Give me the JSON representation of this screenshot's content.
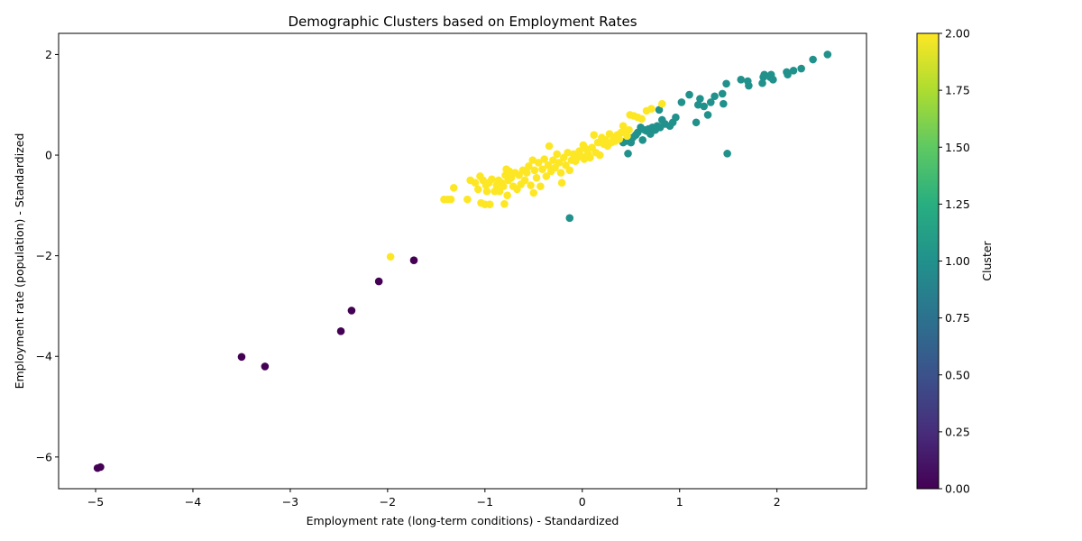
{
  "chart_data": {
    "type": "scatter",
    "title": "Demographic Clusters based on Employment Rates",
    "xlabel": "Employment rate (long-term conditions) - Standardized",
    "ylabel": "Employment rate (population) - Standardized",
    "xlim": [
      -5.38,
      2.92
    ],
    "ylim": [
      -6.63,
      2.42
    ],
    "xticks": [
      -5,
      -4,
      -3,
      -2,
      -1,
      0,
      1,
      2
    ],
    "xtick_labels": [
      "−5",
      "−4",
      "−3",
      "−2",
      "−1",
      "0",
      "1",
      "2"
    ],
    "yticks": [
      -6,
      -4,
      -2,
      0,
      2
    ],
    "ytick_labels": [
      "−6",
      "−4",
      "−2",
      "0",
      "2"
    ],
    "grid": false,
    "colormap": "viridis",
    "colorbar": {
      "label": "Cluster",
      "range": [
        0,
        2
      ],
      "ticks": [
        0,
        0.25,
        0.5,
        0.75,
        1,
        1.25,
        1.5,
        1.75,
        2
      ],
      "tick_labels": [
        "0.00",
        "0.25",
        "0.50",
        "0.75",
        "1.00",
        "1.25",
        "1.50",
        "1.75",
        "2.00"
      ]
    },
    "cluster_colors": {
      "0": "#440154",
      "1": "#21918c",
      "2": "#fde725"
    },
    "series": [
      {
        "cluster": 0,
        "points": [
          [
            -4.98,
            -6.22
          ],
          [
            -4.95,
            -6.2
          ],
          [
            -3.5,
            -4.01
          ],
          [
            -3.26,
            -4.2
          ],
          [
            -2.48,
            -3.5
          ],
          [
            -2.37,
            -3.09
          ],
          [
            -2.09,
            -2.51
          ],
          [
            -1.73,
            -2.09
          ]
        ]
      },
      {
        "cluster": 1,
        "points": [
          [
            -0.13,
            -1.25
          ],
          [
            0.42,
            0.25
          ],
          [
            0.45,
            0.28
          ],
          [
            0.47,
            0.03
          ],
          [
            0.49,
            0.3
          ],
          [
            0.5,
            0.25
          ],
          [
            0.52,
            0.35
          ],
          [
            0.55,
            0.4
          ],
          [
            0.57,
            0.45
          ],
          [
            0.6,
            0.55
          ],
          [
            0.62,
            0.3
          ],
          [
            0.64,
            0.5
          ],
          [
            0.66,
            0.48
          ],
          [
            0.68,
            0.52
          ],
          [
            0.7,
            0.42
          ],
          [
            0.72,
            0.55
          ],
          [
            0.75,
            0.5
          ],
          [
            0.77,
            0.58
          ],
          [
            0.79,
            0.9
          ],
          [
            0.8,
            0.55
          ],
          [
            0.82,
            0.7
          ],
          [
            0.85,
            0.62
          ],
          [
            0.9,
            0.58
          ],
          [
            0.93,
            0.65
          ],
          [
            0.96,
            0.75
          ],
          [
            1.02,
            1.05
          ],
          [
            1.1,
            1.2
          ],
          [
            1.17,
            0.65
          ],
          [
            1.19,
            1.0
          ],
          [
            1.21,
            1.12
          ],
          [
            1.25,
            0.97
          ],
          [
            1.29,
            0.8
          ],
          [
            1.32,
            1.05
          ],
          [
            1.36,
            1.17
          ],
          [
            1.44,
            1.22
          ],
          [
            1.45,
            1.02
          ],
          [
            1.48,
            1.42
          ],
          [
            1.49,
            0.03
          ],
          [
            1.63,
            1.5
          ],
          [
            1.7,
            1.47
          ],
          [
            1.71,
            1.38
          ],
          [
            1.85,
            1.43
          ],
          [
            1.86,
            1.55
          ],
          [
            1.87,
            1.6
          ],
          [
            1.93,
            1.55
          ],
          [
            1.94,
            1.6
          ],
          [
            1.96,
            1.5
          ],
          [
            2.1,
            1.65
          ],
          [
            2.11,
            1.6
          ],
          [
            2.17,
            1.68
          ],
          [
            2.25,
            1.72
          ],
          [
            2.37,
            1.9
          ],
          [
            2.52,
            2.0
          ]
        ]
      },
      {
        "cluster": 2,
        "points": [
          [
            -1.97,
            -2.02
          ],
          [
            -1.42,
            -0.88
          ],
          [
            -1.38,
            -0.88
          ],
          [
            -1.35,
            -0.88
          ],
          [
            -1.32,
            -0.65
          ],
          [
            -1.18,
            -0.88
          ],
          [
            -1.15,
            -0.5
          ],
          [
            -1.1,
            -0.55
          ],
          [
            -1.07,
            -0.68
          ],
          [
            -1.05,
            -0.42
          ],
          [
            -1.04,
            -0.95
          ],
          [
            -1.02,
            -0.5
          ],
          [
            -1.0,
            -0.98
          ],
          [
            -0.99,
            -0.6
          ],
          [
            -0.98,
            -0.72
          ],
          [
            -0.96,
            -0.55
          ],
          [
            -0.95,
            -0.98
          ],
          [
            -0.93,
            -0.48
          ],
          [
            -0.9,
            -0.72
          ],
          [
            -0.88,
            -0.6
          ],
          [
            -0.86,
            -0.5
          ],
          [
            -0.85,
            -0.72
          ],
          [
            -0.83,
            -0.55
          ],
          [
            -0.81,
            -0.62
          ],
          [
            -0.8,
            -0.97
          ],
          [
            -0.79,
            -0.4
          ],
          [
            -0.78,
            -0.28
          ],
          [
            -0.77,
            -0.8
          ],
          [
            -0.76,
            -0.5
          ],
          [
            -0.75,
            -0.32
          ],
          [
            -0.73,
            -0.45
          ],
          [
            -0.71,
            -0.62
          ],
          [
            -0.69,
            -0.35
          ],
          [
            -0.67,
            -0.68
          ],
          [
            -0.65,
            -0.4
          ],
          [
            -0.63,
            -0.58
          ],
          [
            -0.61,
            -0.3
          ],
          [
            -0.59,
            -0.5
          ],
          [
            -0.57,
            -0.35
          ],
          [
            -0.55,
            -0.22
          ],
          [
            -0.53,
            -0.6
          ],
          [
            -0.51,
            -0.1
          ],
          [
            -0.5,
            -0.75
          ],
          [
            -0.49,
            -0.3
          ],
          [
            -0.47,
            -0.45
          ],
          [
            -0.45,
            -0.15
          ],
          [
            -0.43,
            -0.62
          ],
          [
            -0.41,
            -0.28
          ],
          [
            -0.39,
            -0.08
          ],
          [
            -0.37,
            -0.42
          ],
          [
            -0.35,
            -0.2
          ],
          [
            -0.34,
            0.18
          ],
          [
            -0.32,
            -0.32
          ],
          [
            -0.3,
            -0.1
          ],
          [
            -0.28,
            -0.25
          ],
          [
            -0.26,
            0.02
          ],
          [
            -0.24,
            -0.15
          ],
          [
            -0.22,
            -0.35
          ],
          [
            -0.21,
            -0.55
          ],
          [
            -0.19,
            -0.05
          ],
          [
            -0.17,
            -0.2
          ],
          [
            -0.15,
            0.05
          ],
          [
            -0.13,
            -0.3
          ],
          [
            -0.11,
            -0.1
          ],
          [
            -0.09,
            0.02
          ],
          [
            -0.07,
            -0.12
          ],
          [
            -0.05,
            -0.05
          ],
          [
            -0.03,
            0.08
          ],
          [
            -0.01,
            -0.02
          ],
          [
            0.01,
            0.2
          ],
          [
            0.02,
            -0.08
          ],
          [
            0.04,
            0.12
          ],
          [
            0.06,
            0.02
          ],
          [
            0.08,
            -0.05
          ],
          [
            0.1,
            0.15
          ],
          [
            0.12,
            0.4
          ],
          [
            0.14,
            0.05
          ],
          [
            0.16,
            0.25
          ],
          [
            0.18,
            0.0
          ],
          [
            0.2,
            0.35
          ],
          [
            0.22,
            0.22
          ],
          [
            0.24,
            0.3
          ],
          [
            0.26,
            0.18
          ],
          [
            0.28,
            0.42
          ],
          [
            0.3,
            0.25
          ],
          [
            0.32,
            0.35
          ],
          [
            0.34,
            0.28
          ],
          [
            0.36,
            0.4
          ],
          [
            0.38,
            0.32
          ],
          [
            0.4,
            0.45
          ],
          [
            0.42,
            0.58
          ],
          [
            0.44,
            0.48
          ],
          [
            0.46,
            0.38
          ],
          [
            0.48,
            0.5
          ],
          [
            0.49,
            0.8
          ],
          [
            0.53,
            0.78
          ],
          [
            0.57,
            0.75
          ],
          [
            0.61,
            0.72
          ],
          [
            0.66,
            0.88
          ],
          [
            0.71,
            0.92
          ],
          [
            0.82,
            1.02
          ]
        ]
      }
    ]
  }
}
